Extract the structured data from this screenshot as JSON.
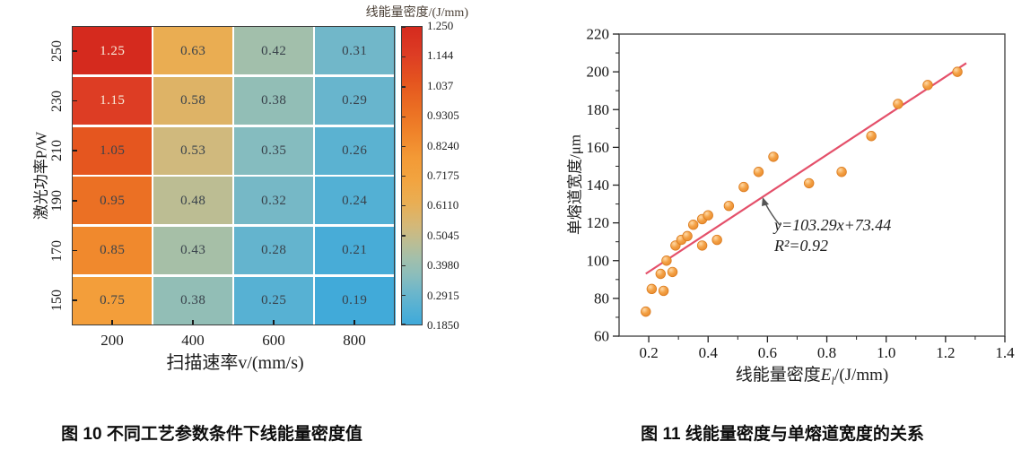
{
  "figure10": {
    "caption": "图 10 不同工艺参数条件下线能量密度值"
  },
  "figure11": {
    "caption": "图 11 线能量密度与单熔道宽度的关系",
    "xlabel_prefix": "线能量密度",
    "xlabel_var": "E",
    "xlabel_sub": "l",
    "xlabel_suffix": "/(J/mm)"
  },
  "chart_data": [
    {
      "type": "heatmap",
      "title": "",
      "xlabel": "扫描速率v/(mm/s)",
      "ylabel": "激光功率P/W",
      "x_categories": [
        "200",
        "400",
        "600",
        "800"
      ],
      "y_categories": [
        "250",
        "230",
        "210",
        "190",
        "170",
        "150"
      ],
      "values": [
        [
          1.25,
          0.63,
          0.42,
          0.31
        ],
        [
          1.15,
          0.58,
          0.38,
          0.29
        ],
        [
          1.05,
          0.53,
          0.35,
          0.26
        ],
        [
          0.95,
          0.48,
          0.32,
          0.24
        ],
        [
          0.85,
          0.43,
          0.28,
          0.21
        ],
        [
          0.75,
          0.38,
          0.25,
          0.19
        ]
      ],
      "colorbar": {
        "title": "线能量密度/(J/mm)",
        "tick_labels": [
          "1.250",
          "1.144",
          "1.037",
          "0.9305",
          "0.8240",
          "0.7175",
          "0.6110",
          "0.5045",
          "0.3980",
          "0.2915",
          "0.1850"
        ],
        "vmin": 0.185,
        "vmax": 1.25
      },
      "colormap_stops": [
        [
          0.185,
          "#3fa9da"
        ],
        [
          0.24,
          "#53b0d4"
        ],
        [
          0.3,
          "#6cb6cb"
        ],
        [
          0.36,
          "#8abdbc"
        ],
        [
          0.42,
          "#a2bfab"
        ],
        [
          0.48,
          "#bcbd93"
        ],
        [
          0.54,
          "#d4b878"
        ],
        [
          0.62,
          "#e9ae54"
        ],
        [
          0.7,
          "#f2a440"
        ],
        [
          0.78,
          "#f39a36"
        ],
        [
          0.88,
          "#ef8129"
        ],
        [
          0.97,
          "#ea6b22"
        ],
        [
          1.06,
          "#e4531f"
        ],
        [
          1.15,
          "#dd3d24"
        ],
        [
          1.25,
          "#d52a1e"
        ]
      ],
      "light_text_threshold": 1.1,
      "grid_color": "#ffffff",
      "dark_text_color": "#39424b",
      "light_text_color": "#f8eedd"
    },
    {
      "type": "scatter",
      "xlabel": "线能量密度El/(J/mm)",
      "ylabel": "单熔道宽度/μm",
      "xlim": [
        0.1,
        1.4
      ],
      "ylim": [
        60,
        220
      ],
      "x_ticks": [
        0.2,
        0.4,
        0.6,
        0.8,
        1.0,
        1.2,
        1.4
      ],
      "x_tick_labels": [
        "0.2",
        "0.4",
        "0.6",
        "0.8",
        "1.0",
        "1.2",
        "1.4"
      ],
      "y_ticks": [
        60,
        80,
        100,
        120,
        140,
        160,
        180,
        200,
        220
      ],
      "y_tick_labels": [
        "60",
        "80",
        "100",
        "120",
        "140",
        "160",
        "180",
        "200",
        "220"
      ],
      "points": [
        [
          0.19,
          73
        ],
        [
          0.21,
          85
        ],
        [
          0.25,
          84
        ],
        [
          0.24,
          93
        ],
        [
          0.28,
          94
        ],
        [
          0.26,
          100
        ],
        [
          0.29,
          108
        ],
        [
          0.31,
          111
        ],
        [
          0.33,
          113
        ],
        [
          0.35,
          119
        ],
        [
          0.38,
          122
        ],
        [
          0.4,
          124
        ],
        [
          0.38,
          108
        ],
        [
          0.43,
          111
        ],
        [
          0.47,
          129
        ],
        [
          0.52,
          139
        ],
        [
          0.57,
          147
        ],
        [
          0.62,
          155
        ],
        [
          0.74,
          141
        ],
        [
          0.85,
          147
        ],
        [
          0.95,
          166
        ],
        [
          1.04,
          183
        ],
        [
          1.14,
          193
        ],
        [
          1.24,
          200
        ]
      ],
      "fit": {
        "equation": "y=103.29x+73.44",
        "r_squared": "R²=0.92",
        "slope": 103.29,
        "intercept": 73.44,
        "x_start": 0.19,
        "x_end": 1.27,
        "color": "#e4506a"
      },
      "marker": {
        "fill": "#f3a145",
        "edge": "#db7c20",
        "highlight": "#ffd9a6"
      },
      "grid": false,
      "legend": null
    }
  ]
}
